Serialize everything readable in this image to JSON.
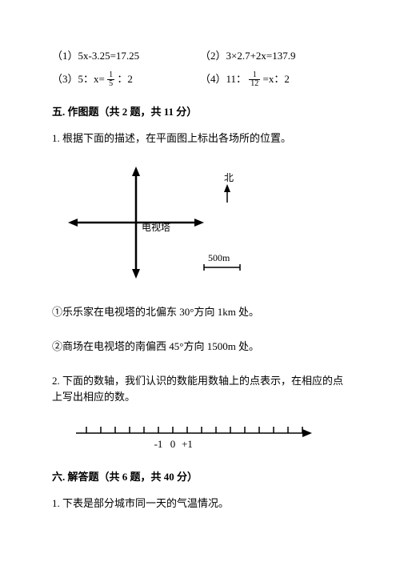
{
  "equations": {
    "r1c1": "（1）5x-3.25=17.25",
    "r1c2": "（2）3×2.7+2x=137.9",
    "r2c1_pre": "（3）5：x= ",
    "r2c1_post": " ：2",
    "r2c2_pre": "（4）11： ",
    "r2c2_post": " =x：2",
    "frac1": {
      "n": "1",
      "d": "5"
    },
    "frac2": {
      "n": "1",
      "d": "12"
    }
  },
  "section5": {
    "title": "五. 作图题（共 2 题，共 11 分）",
    "q1": "1. 根据下面的描述，在平面图上标出各场所的位置。",
    "diagram": {
      "north_label": "北",
      "center_label": "电视塔",
      "scale_label": "500m",
      "arrow_color": "#000",
      "line_color": "#000",
      "bg": "#fff"
    },
    "sub1": "①乐乐家在电视塔的北偏东 30°方向 1km 处。",
    "sub2": "②商场在电视塔的南偏西 45°方向 1500m 处。",
    "q2": "2. 下面的数轴，我们认识的数能用数轴上的点表示，在相应的点上写出相应的数。",
    "numline": {
      "labels": [
        "-1",
        "0",
        "+1"
      ],
      "tick_count": 16,
      "line_color": "#000"
    }
  },
  "section6": {
    "title": "六. 解答题（共 6 题，共 40 分）",
    "q1": "1. 下表是部分城市同一天的气温情况。"
  }
}
